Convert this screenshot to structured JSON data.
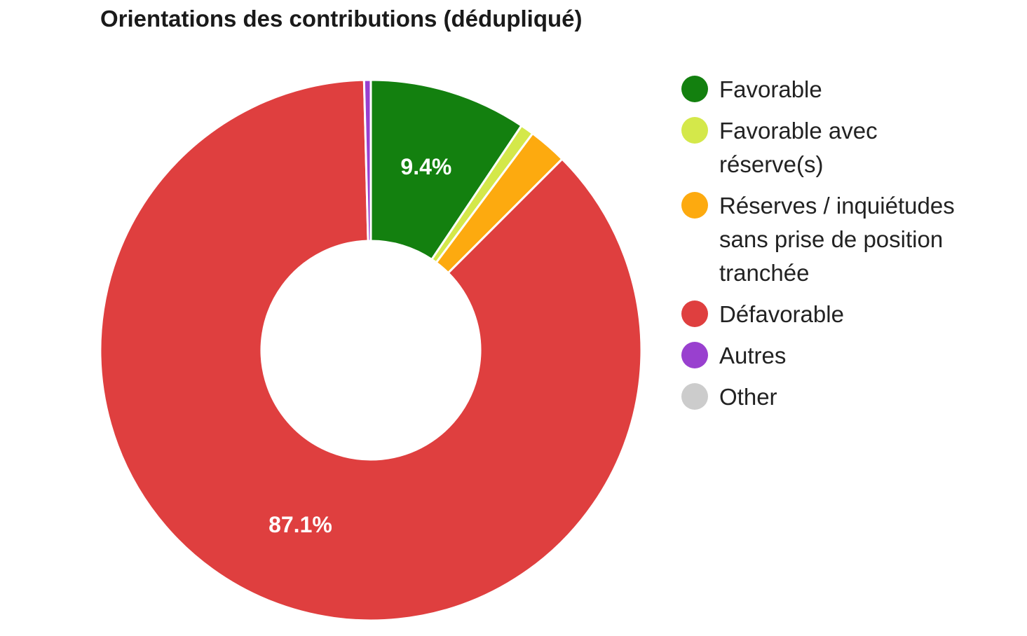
{
  "chart_data": {
    "type": "pie",
    "donut": true,
    "title": "Orientations des contributions (dédupliqué)",
    "legend_position": "right",
    "slices": [
      {
        "name": "Favorable",
        "value": 9.4,
        "color": "#13800f",
        "label": "9.4%"
      },
      {
        "name": "Favorable avec réserve(s)",
        "value": 0.8,
        "color": "#d4e84a",
        "label": ""
      },
      {
        "name": "Réserves / inquiétudes sans prise de position tranchée",
        "value": 2.3,
        "color": "#fdaa0f",
        "label": ""
      },
      {
        "name": "Défavorable",
        "value": 87.1,
        "color": "#df3f3f",
        "label": "87.1%"
      },
      {
        "name": "Autres",
        "value": 0.4,
        "color": "#9940cf",
        "label": ""
      },
      {
        "name": "Other",
        "value": 0.0,
        "color": "#cccccc",
        "label": ""
      }
    ]
  }
}
